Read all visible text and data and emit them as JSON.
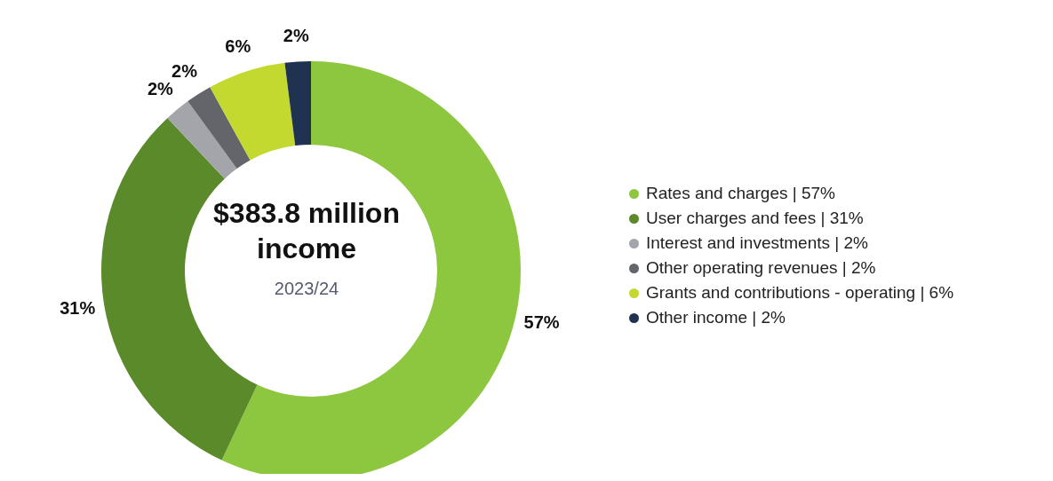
{
  "chart_data": {
    "type": "donut",
    "title": "$383.8 million income",
    "subtitle": "2023/24",
    "categories": [
      "Rates and charges | 57%",
      "User charges and fees | 31%",
      "Interest and investments | 2%",
      "Other operating revenues | 2%",
      "Grants and contributions - operating | 6%",
      "Other income | 2%"
    ],
    "values": [
      57,
      31,
      2,
      2,
      6,
      2
    ],
    "value_labels": [
      "57%",
      "31%",
      "2%",
      "2%",
      "6%",
      "2%"
    ],
    "colors": [
      "#8dc63f",
      "#5b8a2b",
      "#a3a5aa",
      "#63656a",
      "#c3d92f",
      "#1f3350"
    ],
    "legend": "right"
  }
}
